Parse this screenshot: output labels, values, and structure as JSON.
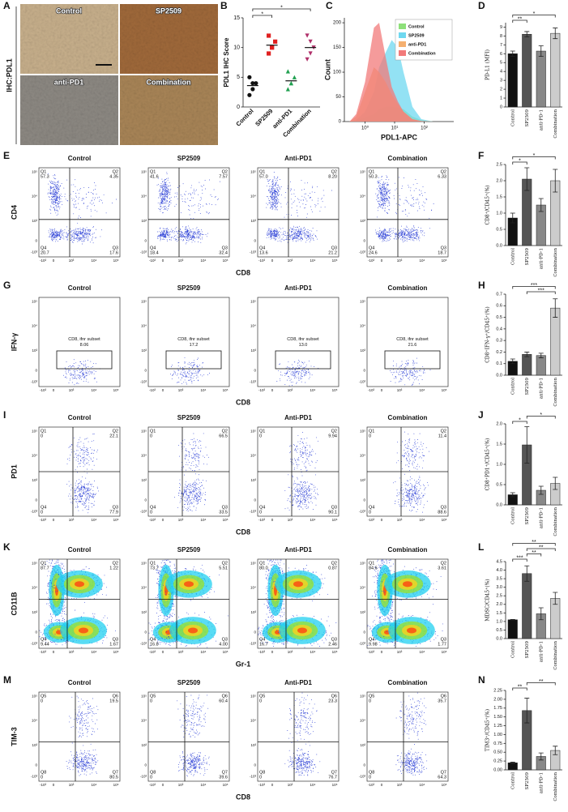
{
  "ihc": {
    "panel": "A",
    "side_label": "IHC:PDL1",
    "images": [
      "Control",
      "SP2509",
      "anti-PD1",
      "Combination"
    ]
  },
  "flow": {
    "axis_ticks": [
      "-10³",
      "0",
      "10³",
      "10⁴",
      "10⁵"
    ],
    "rows": [
      {
        "panel": "E",
        "ylabel": "CD4",
        "xlabel": "CD8",
        "plots": [
          {
            "title": "Control",
            "quadrants": [
              {
                "name": "Q1",
                "value": "57.3"
              },
              {
                "name": "Q2",
                "value": "4.35"
              },
              {
                "name": "Q3",
                "value": "17.6"
              },
              {
                "name": "Q4",
                "value": "20.7"
              }
            ]
          },
          {
            "title": "SP2509",
            "quadrants": [
              {
                "name": "Q1",
                "value": "41.6"
              },
              {
                "name": "Q2",
                "value": "7.57"
              },
              {
                "name": "Q3",
                "value": "32.4"
              },
              {
                "name": "Q4",
                "value": "18.4"
              }
            ]
          },
          {
            "title": "Anti-PD1",
            "quadrants": [
              {
                "name": "Q1",
                "value": "57.0"
              },
              {
                "name": "Q2",
                "value": "8.20"
              },
              {
                "name": "Q3",
                "value": "21.2"
              },
              {
                "name": "Q4",
                "value": "13.6"
              }
            ]
          },
          {
            "title": "Combination",
            "quadrants": [
              {
                "name": "Q1",
                "value": "50.3"
              },
              {
                "name": "Q2",
                "value": "6.33"
              },
              {
                "name": "Q3",
                "value": "18.7"
              },
              {
                "name": "Q4",
                "value": "24.6"
              }
            ]
          }
        ]
      },
      {
        "panel": "G",
        "ylabel": "IFN-γ",
        "xlabel": "CD8",
        "plots": [
          {
            "title": "Control",
            "gate": {
              "name": "CD8, ifnr subset",
              "value": "8.06"
            }
          },
          {
            "title": "SP2509",
            "gate": {
              "name": "CD8, ifnr subset",
              "value": "17.2"
            }
          },
          {
            "title": "Anti-PD1",
            "gate": {
              "name": "CD8, ifnr subset",
              "value": "13.0"
            }
          },
          {
            "title": "Combination",
            "gate": {
              "name": "CD8, ifnr subset",
              "value": "21.6"
            }
          }
        ]
      },
      {
        "panel": "I",
        "ylabel": "PD1",
        "xlabel": "CD8",
        "plots": [
          {
            "title": "Control",
            "quadrants": [
              {
                "name": "Q1",
                "value": "0"
              },
              {
                "name": "Q2",
                "value": "22.1"
              },
              {
                "name": "Q3",
                "value": "77.9"
              },
              {
                "name": "Q4",
                "value": "0"
              }
            ]
          },
          {
            "title": "SP2509",
            "quadrants": [
              {
                "name": "Q1",
                "value": "0"
              },
              {
                "name": "Q2",
                "value": "66.5"
              },
              {
                "name": "Q3",
                "value": "33.5"
              },
              {
                "name": "Q4",
                "value": "0"
              }
            ]
          },
          {
            "title": "Anti-PD1",
            "quadrants": [
              {
                "name": "Q1",
                "value": "0"
              },
              {
                "name": "Q2",
                "value": "9.94"
              },
              {
                "name": "Q3",
                "value": "90.1"
              },
              {
                "name": "Q4",
                "value": "0"
              }
            ]
          },
          {
            "title": "Combination",
            "quadrants": [
              {
                "name": "Q1",
                "value": "0"
              },
              {
                "name": "Q2",
                "value": "11.4"
              },
              {
                "name": "Q3",
                "value": "88.6"
              },
              {
                "name": "Q4",
                "value": "0"
              }
            ]
          }
        ]
      },
      {
        "panel": "K",
        "ylabel": "CD11B",
        "xlabel": "Gr-1",
        "plots": [
          {
            "title": "Control",
            "quadrants": [
              {
                "name": "Q1",
                "value": "87.7"
              },
              {
                "name": "Q2",
                "value": "1.22"
              },
              {
                "name": "Q3",
                "value": "1.67"
              },
              {
                "name": "Q4",
                "value": "9.44"
              }
            ]
          },
          {
            "title": "SP2509",
            "quadrants": [
              {
                "name": "Q1",
                "value": "73.7"
              },
              {
                "name": "Q2",
                "value": "5.51"
              },
              {
                "name": "Q3",
                "value": "4.00"
              },
              {
                "name": "Q4",
                "value": "16.8"
              }
            ]
          },
          {
            "title": "Anti-PD1",
            "quadrants": [
              {
                "name": "Q1",
                "value": "80.0"
              },
              {
                "name": "Q2",
                "value": "0.87"
              },
              {
                "name": "Q3",
                "value": "2.46"
              },
              {
                "name": "Q4",
                "value": "16.7"
              }
            ]
          },
          {
            "title": "Combination",
            "quadrants": [
              {
                "name": "Q1",
                "value": "84.6"
              },
              {
                "name": "Q2",
                "value": "3.61"
              },
              {
                "name": "Q3",
                "value": "1.77"
              },
              {
                "name": "Q4",
                "value": "9.98"
              }
            ]
          }
        ]
      },
      {
        "panel": "M",
        "ylabel": "TIM-3",
        "xlabel": "CD8",
        "plots": [
          {
            "title": "Control",
            "quadrants": [
              {
                "name": "Q5",
                "value": "0"
              },
              {
                "name": "Q6",
                "value": "19.5"
              },
              {
                "name": "Q7",
                "value": "80.5"
              },
              {
                "name": "Q8",
                "value": "0"
              }
            ]
          },
          {
            "title": "SP2509",
            "quadrants": [
              {
                "name": "Q5",
                "value": "0"
              },
              {
                "name": "Q6",
                "value": "60.4"
              },
              {
                "name": "Q7",
                "value": "39.6"
              },
              {
                "name": "Q8",
                "value": "0"
              }
            ]
          },
          {
            "title": "Anti-PD1",
            "quadrants": [
              {
                "name": "Q5",
                "value": "0"
              },
              {
                "name": "Q6",
                "value": "23.3"
              },
              {
                "name": "Q7",
                "value": "76.7"
              },
              {
                "name": "Q8",
                "value": "0"
              }
            ]
          },
          {
            "title": "Combination",
            "quadrants": [
              {
                "name": "Q5",
                "value": "0"
              },
              {
                "name": "Q6",
                "value": "35.7"
              },
              {
                "name": "Q7",
                "value": "64.3"
              },
              {
                "name": "Q8",
                "value": "0"
              }
            ]
          }
        ]
      }
    ]
  },
  "chart_data": [
    {
      "type": "strip",
      "panel": "B",
      "ylabel": "PDL1 IHC Score",
      "categories": [
        "Control",
        "SP2509",
        "anti-PD1",
        "Combination"
      ],
      "values": [
        [
          2,
          3,
          4,
          5,
          4
        ],
        [
          9,
          10,
          11,
          12,
          10
        ],
        [
          3,
          4,
          5,
          6,
          4
        ],
        [
          8,
          9,
          10,
          12,
          11
        ]
      ],
      "means": [
        3.6,
        10.4,
        4.4,
        10
      ],
      "colors": [
        "#111111",
        "#e02020",
        "#20a050",
        "#b0306a"
      ],
      "markers": [
        "circle",
        "square",
        "triangle",
        "triangle-down"
      ],
      "ylim": [
        0,
        15
      ],
      "yticks": [
        0,
        5,
        10,
        15
      ],
      "annotations": [
        {
          "text": "*",
          "between": [
            "Control",
            "SP2509"
          ]
        },
        {
          "text": "*",
          "between": [
            "Control",
            "Combination"
          ]
        }
      ]
    },
    {
      "type": "area",
      "panel": "C",
      "xlabel": "PDL1-APC",
      "ylabel": "Count",
      "log_x": true,
      "x": [
        0.3,
        0.5,
        1,
        2,
        3,
        5,
        8,
        13,
        20,
        40,
        80,
        200
      ],
      "series": [
        {
          "name": "Control",
          "color": "#8ee07a",
          "values": [
            0,
            2,
            8,
            15,
            25,
            30,
            30,
            28,
            25,
            10,
            3,
            0
          ]
        },
        {
          "name": "SP2509",
          "color": "#6fd8f0",
          "values": [
            0,
            3,
            20,
            60,
            110,
            140,
            165,
            150,
            100,
            30,
            5,
            0
          ]
        },
        {
          "name": "anti-PD1",
          "color": "#f5b070",
          "values": [
            0,
            10,
            60,
            110,
            100,
            80,
            55,
            35,
            20,
            5,
            1,
            0
          ]
        },
        {
          "name": "Combination",
          "color": "#f27a7a",
          "values": [
            0,
            15,
            80,
            190,
            200,
            130,
            70,
            40,
            20,
            5,
            1,
            0
          ]
        }
      ],
      "xlim": [
        0.2,
        1000
      ],
      "xticks": [
        {
          "value": 1,
          "label": "10⁰"
        },
        {
          "value": 10,
          "label": "10¹"
        },
        {
          "value": 100,
          "label": "10²"
        }
      ],
      "ylim": [
        0,
        210
      ],
      "yticks": [
        0,
        50,
        100,
        150,
        200
      ],
      "legend": "top-right"
    },
    {
      "type": "bar",
      "panel": "D",
      "ylabel": "PD-L1 (MFI)",
      "categories": [
        "Control",
        "SP2509",
        "anti-PD-1",
        "Combination"
      ],
      "values": [
        6.0,
        8.2,
        6.3,
        8.3
      ],
      "errors": [
        0.3,
        0.3,
        0.6,
        0.6
      ],
      "colors": [
        "#111111",
        "#555555",
        "#888888",
        "#cccccc"
      ],
      "ylim": [
        0,
        9.5
      ],
      "yticks": [
        0,
        1,
        2,
        3,
        4,
        5,
        6,
        7,
        8,
        9
      ],
      "annotations": [
        {
          "text": "**",
          "between": [
            "Control",
            "SP2509"
          ]
        },
        {
          "text": "*",
          "between": [
            "Control",
            "Combination"
          ]
        }
      ]
    },
    {
      "type": "bar",
      "panel": "F",
      "ylabel": "CD8⁺/CD45⁺(%)",
      "categories": [
        "Control",
        "SP2509",
        "anti-PD-1",
        "Combination"
      ],
      "values": [
        0.85,
        2.05,
        1.25,
        2.0
      ],
      "errors": [
        0.15,
        0.35,
        0.2,
        0.35
      ],
      "colors": [
        "#111111",
        "#555555",
        "#888888",
        "#cccccc"
      ],
      "ylim": [
        0,
        2.5
      ],
      "yticks": [
        {
          "value": 0,
          "label": "0.0"
        },
        0.5,
        {
          "value": 1,
          "label": "1.0"
        },
        1.5,
        {
          "value": 2,
          "label": "2.0"
        },
        2.5
      ],
      "annotations": [
        {
          "text": "*",
          "between": [
            "Control",
            "SP2509"
          ]
        },
        {
          "text": "*",
          "between": [
            "Control",
            "Combination"
          ]
        }
      ]
    },
    {
      "type": "bar",
      "panel": "H",
      "ylabel": "CD8⁺IFN-γ⁺/CD45⁺(%)",
      "categories": [
        "Control",
        "SP2509",
        "anti-PD-1",
        "Combination"
      ],
      "values": [
        0.12,
        0.18,
        0.17,
        0.58
      ],
      "errors": [
        0.02,
        0.02,
        0.02,
        0.08
      ],
      "colors": [
        "#111111",
        "#555555",
        "#888888",
        "#cccccc"
      ],
      "ylim": [
        0,
        0.7
      ],
      "yticks": [
        {
          "value": 0,
          "label": "0.0"
        },
        0.1,
        0.2,
        0.3,
        0.4,
        0.5,
        0.6,
        0.7
      ],
      "annotations": [
        {
          "text": "***",
          "between": [
            "SP2509",
            "Combination"
          ]
        },
        {
          "text": "***",
          "between": [
            "Control",
            "Combination"
          ]
        }
      ]
    },
    {
      "type": "bar",
      "panel": "J",
      "ylabel": "CD8⁺PD1⁺/CD45⁺(%)",
      "categories": [
        "Control",
        "SP2509",
        "anti-PD-1",
        "Combination"
      ],
      "values": [
        0.25,
        1.48,
        0.36,
        0.53
      ],
      "errors": [
        0.05,
        0.45,
        0.1,
        0.15
      ],
      "colors": [
        "#111111",
        "#555555",
        "#888888",
        "#cccccc"
      ],
      "ylim": [
        0,
        2
      ],
      "yticks": [
        {
          "value": 0,
          "label": "0.0"
        },
        0.5,
        {
          "value": 1,
          "label": "1.0"
        },
        1.5,
        {
          "value": 2,
          "label": "2.0"
        }
      ],
      "annotations": [
        {
          "text": "*",
          "between": [
            "Control",
            "SP2509"
          ]
        },
        {
          "text": "*",
          "between": [
            "SP2509",
            "Combination"
          ]
        }
      ]
    },
    {
      "type": "bar",
      "panel": "L",
      "ylabel": "MDSC/CD45⁺(%)",
      "categories": [
        "Control",
        "SP2509",
        "anti-PD-1",
        "Combination"
      ],
      "values": [
        1.1,
        3.8,
        1.45,
        2.35
      ],
      "errors": [
        0.02,
        0.45,
        0.35,
        0.35
      ],
      "colors": [
        "#111111",
        "#555555",
        "#888888",
        "#cccccc"
      ],
      "ylim": [
        0,
        4.5
      ],
      "yticks": [
        {
          "value": 0,
          "label": "0.0"
        },
        0.5,
        {
          "value": 1,
          "label": "1.0"
        },
        1.5,
        {
          "value": 2,
          "label": "2.0"
        },
        2.5,
        {
          "value": 3,
          "label": "3.0"
        },
        3.5,
        {
          "value": 4,
          "label": "4.0"
        },
        4.5
      ],
      "annotations": [
        {
          "text": "***",
          "between": [
            "Control",
            "SP2509"
          ]
        },
        {
          "text": "**",
          "between": [
            "SP2509",
            "anti-PD-1"
          ]
        },
        {
          "text": "**",
          "between": [
            "SP2509",
            "Combination"
          ]
        },
        {
          "text": "**",
          "between": [
            "Control",
            "Combination"
          ]
        }
      ]
    },
    {
      "type": "bar",
      "panel": "N",
      "ylabel": "TIM3⁺/CD45⁺(%)",
      "categories": [
        "Control",
        "SP2509",
        "anti-PD-1",
        "Combination"
      ],
      "values": [
        0.2,
        1.68,
        0.38,
        0.55
      ],
      "errors": [
        0.02,
        0.35,
        0.1,
        0.12
      ],
      "colors": [
        "#111111",
        "#555555",
        "#888888",
        "#cccccc"
      ],
      "ylim": [
        0,
        2.25
      ],
      "yticks": [
        {
          "value": 0,
          "label": "0.00"
        },
        0.25,
        {
          "value": 0.5,
          "label": "0.50"
        },
        0.75,
        {
          "value": 1,
          "label": "1.00"
        },
        1.25,
        {
          "value": 1.5,
          "label": "1.50"
        },
        1.75,
        {
          "value": 2,
          "label": "2.00"
        },
        2.25
      ],
      "annotations": [
        {
          "text": "**",
          "between": [
            "Control",
            "SP2509"
          ]
        },
        {
          "text": "**",
          "between": [
            "SP2509",
            "Combination"
          ]
        }
      ]
    }
  ]
}
